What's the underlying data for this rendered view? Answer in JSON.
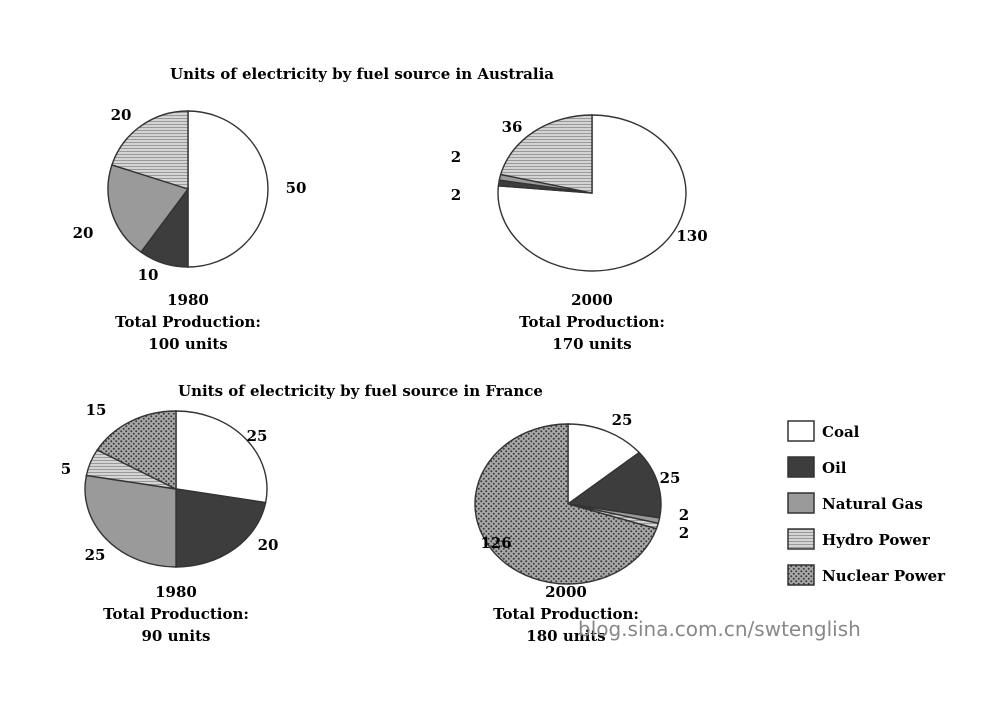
{
  "colors": {
    "Coal": "#ffffff",
    "Oil": "#3d3d3d",
    "Natural Gas": "#9a9a9a",
    "Hydro Power": "#cfcfcf",
    "Nuclear Power": "#8f8f8f",
    "outline": "#333333"
  },
  "watermark": "blog.sina.com.cn/swtenglish",
  "chart_data": [
    {
      "type": "pie",
      "title": "Units of electricity by fuel source in Australia",
      "year": "1980",
      "total_label": "Total Production:",
      "total_value": "100 units",
      "slices": [
        {
          "name": "Coal",
          "value": 50,
          "label": "50"
        },
        {
          "name": "Oil",
          "value": 10,
          "label": "10"
        },
        {
          "name": "Natural Gas",
          "value": 20,
          "label": "20"
        },
        {
          "name": "Hydro Power",
          "value": 20,
          "label": "20"
        }
      ]
    },
    {
      "type": "pie",
      "title": "",
      "year": "2000",
      "total_label": "Total Production:",
      "total_value": "170 units",
      "slices": [
        {
          "name": "Coal",
          "value": 130,
          "label": "130"
        },
        {
          "name": "Oil",
          "value": 2,
          "label": "2"
        },
        {
          "name": "Natural Gas",
          "value": 2,
          "label": "2"
        },
        {
          "name": "Hydro Power",
          "value": 36,
          "label": "36"
        }
      ]
    },
    {
      "type": "pie",
      "title": "Units of electricity by fuel source in France",
      "year": "1980",
      "total_label": "Total Production:",
      "total_value": "90 units",
      "slices": [
        {
          "name": "Coal",
          "value": 25,
          "label": "25"
        },
        {
          "name": "Oil",
          "value": 20,
          "label": "20"
        },
        {
          "name": "Natural Gas",
          "value": 25,
          "label": "25"
        },
        {
          "name": "Hydro Power",
          "value": 5,
          "label": "5"
        },
        {
          "name": "Nuclear Power",
          "value": 15,
          "label": "15"
        }
      ]
    },
    {
      "type": "pie",
      "title": "",
      "year": "2000",
      "total_label": "Total Production:",
      "total_value": "180 units",
      "slices": [
        {
          "name": "Coal",
          "value": 25,
          "label": "25"
        },
        {
          "name": "Oil",
          "value": 25,
          "label": "25"
        },
        {
          "name": "Natural Gas",
          "value": 2,
          "label": "2"
        },
        {
          "name": "Hydro Power",
          "value": 2,
          "label": "2"
        },
        {
          "name": "Nuclear Power",
          "value": 126,
          "label": "126"
        }
      ]
    }
  ],
  "legend": {
    "items": [
      "Coal",
      "Oil",
      "Natural Gas",
      "Hydro Power",
      "Nuclear Power"
    ]
  }
}
